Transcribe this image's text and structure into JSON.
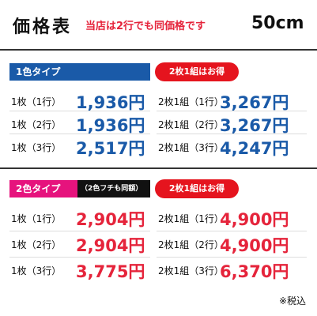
{
  "header": {
    "title": "価格表",
    "note": "当店は2行でも同価格です",
    "size": "50cm"
  },
  "sections": [
    {
      "badge": "1色タイプ",
      "deal": "2枚1組はお得",
      "rows": [
        {
          "single_label": "1枚（1行）",
          "single_price": "1,936円",
          "pair_label": "2枚1組（1行）",
          "pair_price": "3,267円"
        },
        {
          "single_label": "1枚（2行）",
          "single_price": "1,936円",
          "pair_label": "2枚1組（2行）",
          "pair_price": "3,267円"
        },
        {
          "single_label": "1枚（3行）",
          "single_price": "2,517円",
          "pair_label": "2枚1組（3行）",
          "pair_price": "4,247円"
        }
      ]
    },
    {
      "badge": "2色タイプ",
      "badge_note": "（2色フチも同額）",
      "deal": "2枚1組はお得",
      "rows": [
        {
          "single_label": "1枚（1行）",
          "single_price": "2,904円",
          "pair_label": "2枚1組（1行）",
          "pair_price": "4,900円"
        },
        {
          "single_label": "1枚（2行）",
          "single_price": "2,904円",
          "pair_label": "2枚1組（2行）",
          "pair_price": "4,900円"
        },
        {
          "single_label": "1枚（3行）",
          "single_price": "3,775円",
          "pair_label": "2枚1組（3行）",
          "pair_price": "6,370円"
        }
      ]
    }
  ],
  "footer": "※税込"
}
